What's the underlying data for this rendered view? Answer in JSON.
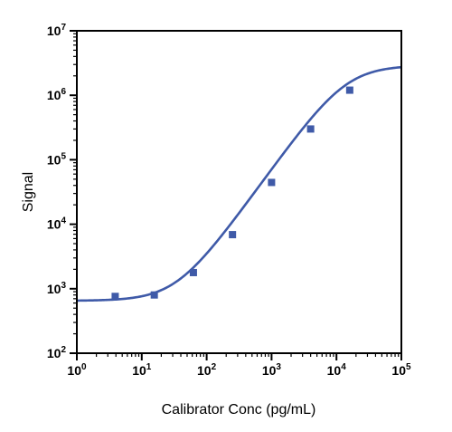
{
  "chart_data": {
    "type": "scatter",
    "xlabel": "Calibrator Conc (pg/mL)",
    "ylabel": "Signal",
    "x_scale": "log",
    "y_scale": "log",
    "xlim": [
      1,
      100000
    ],
    "ylim": [
      100,
      10000000
    ],
    "x_ticks": [
      {
        "base": "10",
        "exp": "0"
      },
      {
        "base": "10",
        "exp": "1"
      },
      {
        "base": "10",
        "exp": "2"
      },
      {
        "base": "10",
        "exp": "3"
      },
      {
        "base": "10",
        "exp": "4"
      },
      {
        "base": "10",
        "exp": "5"
      }
    ],
    "y_ticks": [
      {
        "base": "10",
        "exp": "2"
      },
      {
        "base": "10",
        "exp": "3"
      },
      {
        "base": "10",
        "exp": "4"
      },
      {
        "base": "10",
        "exp": "5"
      },
      {
        "base": "10",
        "exp": "6"
      },
      {
        "base": "10",
        "exp": "7"
      }
    ],
    "grid": false,
    "color": "#3f5aa8",
    "points": [
      {
        "x": 3.9,
        "y": 760
      },
      {
        "x": 15.6,
        "y": 800
      },
      {
        "x": 62.5,
        "y": 1780
      },
      {
        "x": 250,
        "y": 6900
      },
      {
        "x": 1000,
        "y": 44500
      },
      {
        "x": 4000,
        "y": 300000
      },
      {
        "x": 16000,
        "y": 1200000
      }
    ],
    "fit_curve": {
      "model": "4PL",
      "bottom": 650,
      "top": 2900000,
      "ec50": 14000,
      "hill": 1.4
    }
  }
}
